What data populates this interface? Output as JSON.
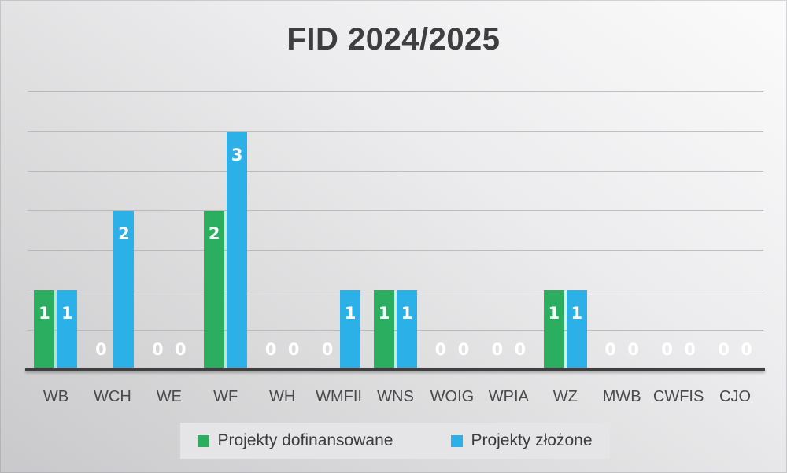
{
  "chart_data": {
    "type": "bar",
    "title": "FID 2024/2025",
    "categories": [
      "WB",
      "WCH",
      "WE",
      "WF",
      "WH",
      "WMFII",
      "WNS",
      "WOIG",
      "WPIA",
      "WZ",
      "MWB",
      "CWFIS",
      "CJO"
    ],
    "series": [
      {
        "name": "Projekty dofinansowane",
        "color": "#2bae60",
        "values": [
          1,
          0,
          0,
          2,
          0,
          0,
          1,
          0,
          0,
          1,
          0,
          0,
          0
        ]
      },
      {
        "name": "Projekty złożone",
        "color": "#2cb0e8",
        "values": [
          1,
          2,
          0,
          3,
          0,
          1,
          1,
          0,
          0,
          1,
          0,
          0,
          0
        ]
      }
    ],
    "ylim": [
      0,
      3.75
    ],
    "grid_step": 0.5,
    "grid_on": true,
    "legend_position": "bottom",
    "data_labels": "inside-end",
    "data_label_color": "#ffffff",
    "axis_color": "#3f3f41",
    "xlabel": "",
    "ylabel": ""
  }
}
